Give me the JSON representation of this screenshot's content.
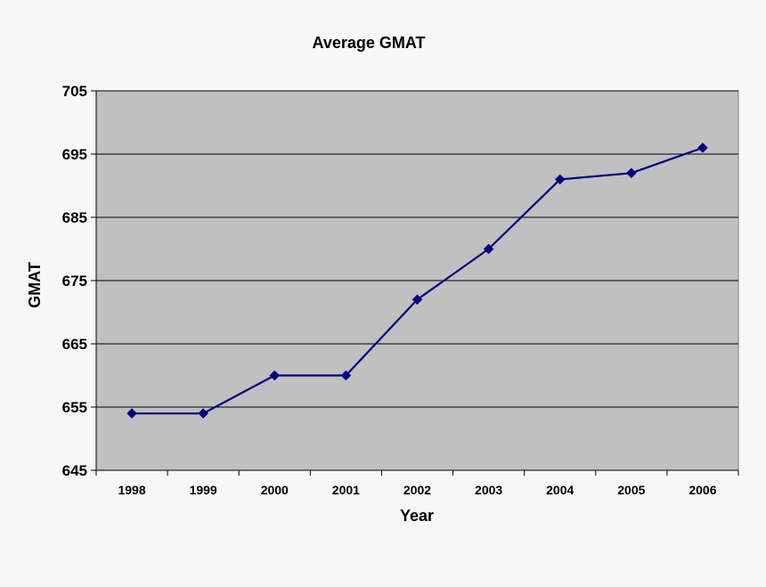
{
  "chart_data": {
    "type": "line",
    "title": "Average GMAT",
    "xlabel": "Year",
    "ylabel": "GMAT",
    "categories": [
      "1998",
      "1999",
      "2000",
      "2001",
      "2002",
      "2003",
      "2004",
      "2005",
      "2006"
    ],
    "series": [
      {
        "values": [
          654,
          654,
          660,
          660,
          672,
          680,
          691,
          692,
          696
        ]
      }
    ],
    "ylim": [
      645,
      705
    ],
    "yticks": [
      645,
      655,
      665,
      675,
      685,
      695,
      705
    ],
    "yticks_labels": [
      "645",
      "655",
      "665",
      "675",
      "685",
      "695",
      "705"
    ],
    "grid": true,
    "legend": "none",
    "colors": {
      "plot_background": "#c0c0c0",
      "page_background": "#f7f7f7",
      "line": "#000080",
      "marker": "#000080",
      "gridline": "#000000"
    },
    "marker": "diamond"
  }
}
